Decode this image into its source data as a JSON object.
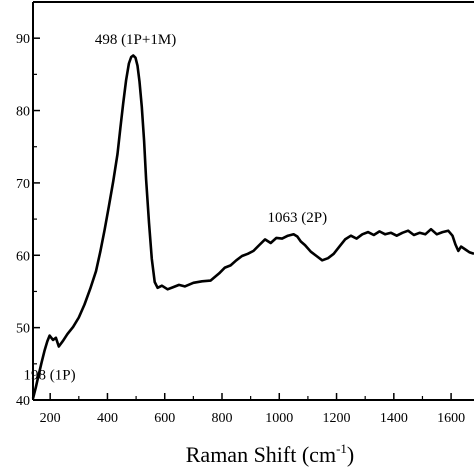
{
  "chart_data": {
    "type": "line",
    "xlabel": "Raman Shift (cm",
    "xlabel_sup": "-1",
    "xlabel_close": ")",
    "ylabel": "",
    "xlim": [
      140,
      1680
    ],
    "ylim": [
      40,
      95
    ],
    "x_ticks": [
      200,
      400,
      600,
      800,
      1000,
      1200,
      1400,
      1600
    ],
    "x_tick_labels": [
      "200",
      "400",
      "600",
      "800",
      "1000",
      "1200",
      "1400",
      "1600"
    ],
    "y_ticks": [
      40,
      50,
      60,
      70,
      80,
      90
    ],
    "y_tick_labels": [
      "40",
      "50",
      "60",
      "70",
      "80",
      "90"
    ],
    "grid": false,
    "annotations": [
      {
        "text": "498 (1P+1M)",
        "x": 498,
        "y": 89.2
      },
      {
        "text": "1063 (2P)",
        "x": 1063,
        "y": 64.6
      },
      {
        "text": "198 (1P)",
        "x": 198,
        "y": 42.8
      }
    ],
    "series": [
      {
        "x": [
          140,
          150,
          160,
          170,
          180,
          190,
          198,
          210,
          220,
          230,
          245,
          260,
          280,
          300,
          320,
          340,
          360,
          375,
          390,
          405,
          420,
          435,
          445,
          455,
          465,
          475,
          483,
          490,
          498,
          505,
          512,
          520,
          528,
          535,
          545,
          555,
          565,
          575,
          590,
          610,
          630,
          650,
          670,
          700,
          730,
          760,
          790,
          810,
          830,
          850,
          870,
          890,
          910,
          930,
          950,
          970,
          990,
          1010,
          1030,
          1050,
          1063,
          1075,
          1090,
          1110,
          1130,
          1150,
          1170,
          1190,
          1210,
          1230,
          1250,
          1270,
          1290,
          1310,
          1330,
          1350,
          1370,
          1390,
          1410,
          1430,
          1450,
          1470,
          1490,
          1510,
          1530,
          1550,
          1570,
          1590,
          1605,
          1615,
          1625,
          1635,
          1650,
          1665,
          1680
        ],
        "y": [
          40.2,
          41.8,
          43.5,
          45.2,
          46.8,
          48.1,
          48.9,
          48.3,
          48.6,
          47.4,
          48.2,
          49.1,
          50.1,
          51.4,
          53.2,
          55.4,
          57.8,
          60.5,
          63.5,
          66.8,
          70.2,
          74.0,
          77.5,
          81.0,
          84.2,
          86.5,
          87.4,
          87.6,
          87.3,
          86.2,
          84.0,
          80.5,
          75.8,
          70.5,
          64.5,
          59.5,
          56.3,
          55.5,
          55.8,
          55.3,
          55.6,
          55.9,
          55.7,
          56.2,
          56.4,
          56.5,
          57.5,
          58.3,
          58.6,
          59.3,
          59.9,
          60.2,
          60.6,
          61.4,
          62.2,
          61.7,
          62.4,
          62.3,
          62.7,
          62.9,
          62.6,
          61.9,
          61.4,
          60.5,
          59.9,
          59.3,
          59.6,
          60.2,
          61.2,
          62.2,
          62.7,
          62.3,
          62.9,
          63.2,
          62.8,
          63.3,
          62.9,
          63.1,
          62.7,
          63.1,
          63.4,
          62.8,
          63.1,
          62.9,
          63.6,
          62.9,
          63.2,
          63.4,
          62.7,
          61.5,
          60.6,
          61.2,
          60.8,
          60.4,
          60.2
        ]
      }
    ]
  }
}
